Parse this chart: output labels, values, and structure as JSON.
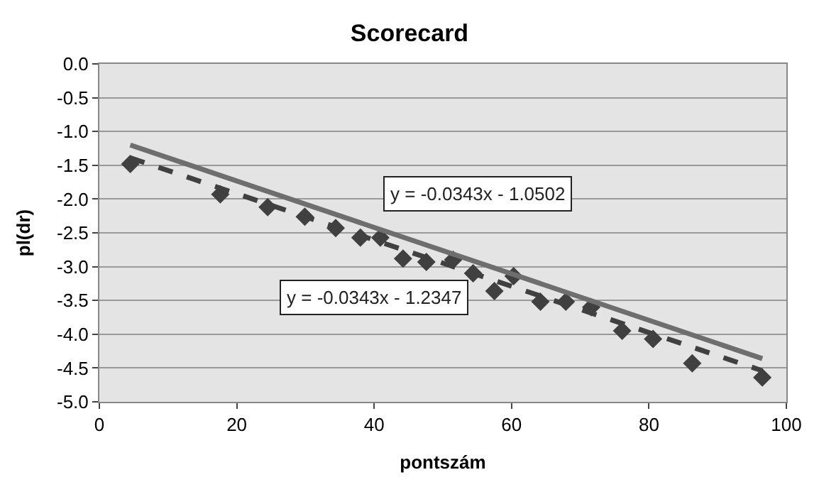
{
  "chart_data": {
    "type": "scatter",
    "title": "Scorecard",
    "xlabel": "pontszám",
    "ylabel": "pl(dr)",
    "xlim": [
      0,
      100
    ],
    "xticks": [
      0,
      20,
      40,
      60,
      80,
      100
    ],
    "ylim": [
      -5,
      0
    ],
    "yticks": [
      {
        "value": 0,
        "label": "0.0"
      },
      {
        "value": -0.5,
        "label": "-0.5"
      },
      {
        "value": -1,
        "label": "-1.0"
      },
      {
        "value": -1.5,
        "label": "-1.5"
      },
      {
        "value": -2,
        "label": "-2.0"
      },
      {
        "value": -2.5,
        "label": "-2.5"
      },
      {
        "value": -3,
        "label": "-3.0"
      },
      {
        "value": -3.5,
        "label": "-3.5"
      },
      {
        "value": -4,
        "label": "-4.0"
      },
      {
        "value": -4.5,
        "label": "-4.5"
      },
      {
        "value": -5,
        "label": "-5.0"
      }
    ],
    "grid": "y",
    "series": [
      {
        "marker": "diamond",
        "color": "#404040",
        "x": [
          4.5,
          17.6,
          24.5,
          29.9,
          34.4,
          38.0,
          40.9,
          44.2,
          47.6,
          51.5,
          54.4,
          57.5,
          60.3,
          64.2,
          67.9,
          71.6,
          76.1,
          80.6,
          86.3,
          96.5
        ],
        "values": [
          -1.48,
          -1.93,
          -2.12,
          -2.26,
          -2.43,
          -2.57,
          -2.57,
          -2.88,
          -2.93,
          -2.9,
          -3.1,
          -3.36,
          -3.14,
          -3.52,
          -3.52,
          -3.6,
          -3.95,
          -4.07,
          -4.43,
          -4.64
        ]
      },
      {
        "type": "line",
        "line_style": "solid",
        "color": "#6e6e6e",
        "x": [
          4.5,
          96.5
        ],
        "values": [
          -1.2,
          -4.36
        ]
      },
      {
        "type": "line",
        "line_style": "dashed",
        "color": "#404040",
        "x": [
          4.5,
          96.5
        ],
        "values": [
          -1.39,
          -4.54
        ]
      }
    ],
    "annotations": [
      "y = -0.0343x - 1.0502",
      "y = -0.0343x - 1.2347"
    ]
  }
}
